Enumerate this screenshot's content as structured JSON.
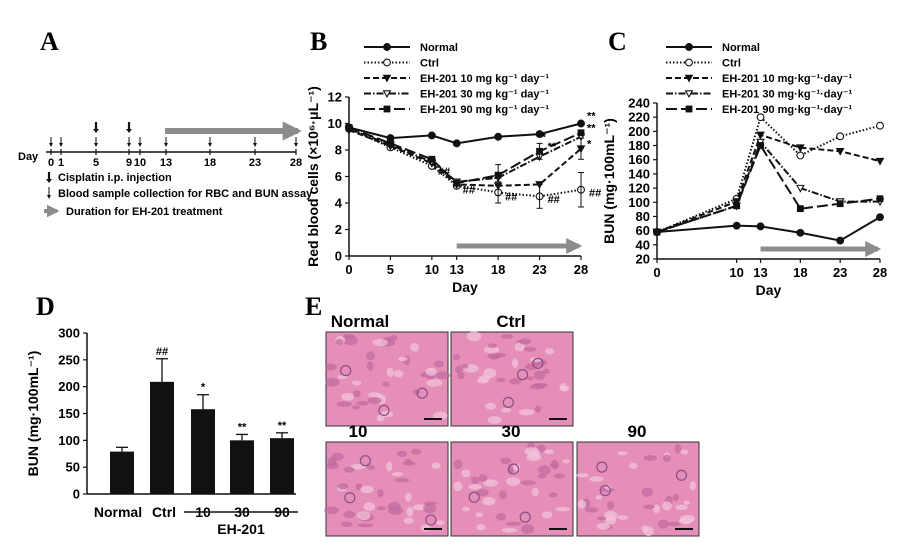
{
  "panels": {
    "A": {
      "label": "A",
      "day_label": "Day",
      "days": [
        "0",
        "1",
        "5",
        "9",
        "10",
        "13",
        "18",
        "23",
        "28"
      ],
      "legend": [
        {
          "icon": "thick-down-arrow-icon",
          "text": "Cisplatin i.p. injection"
        },
        {
          "icon": "thin-down-arrow-icon",
          "text": "Blood sample collection for RBC and BUN assay"
        },
        {
          "icon": "grey-right-arrow-icon",
          "text": "Duration for EH-201 treatment"
        }
      ],
      "treatment_color": "#8c8c8c"
    },
    "B": {
      "label": "B"
    },
    "C": {
      "label": "C"
    },
    "D": {
      "label": "D",
      "group_label": "EH-201"
    },
    "E": {
      "label": "E",
      "images": [
        {
          "label": "Normal"
        },
        {
          "label": "Ctrl"
        },
        {
          "label": "10"
        },
        {
          "label": "30"
        },
        {
          "label": "90"
        }
      ],
      "tissue_color": "#e58fb8"
    }
  },
  "chart_data": [
    {
      "panel": "B",
      "type": "line",
      "xlabel": "Day",
      "ylabel": "Red blood cells (×10⁶·μL⁻¹)",
      "xlim": [
        0,
        28
      ],
      "ylim": [
        0,
        12
      ],
      "xticks": [
        0,
        5,
        10,
        13,
        18,
        23,
        28
      ],
      "yticks": [
        0,
        2,
        4,
        6,
        8,
        10,
        12
      ],
      "x": [
        0,
        5,
        10,
        13,
        18,
        23,
        28
      ],
      "legend_position": "top",
      "series": [
        {
          "name": "Normal",
          "style": "solid",
          "marker": "circle-filled",
          "values": [
            9.7,
            8.9,
            9.1,
            8.5,
            9.0,
            9.2,
            10.0
          ]
        },
        {
          "name": "Ctrl",
          "style": "dotted",
          "marker": "circle-open",
          "values": [
            9.6,
            8.2,
            6.8,
            5.3,
            4.8,
            4.5,
            5.0
          ]
        },
        {
          "name": "EH-201 10 mg kg⁻¹ day⁻¹",
          "style": "dashed",
          "marker": "triangle-filled",
          "values": [
            9.5,
            8.3,
            7.0,
            5.4,
            5.3,
            5.4,
            8.1
          ]
        },
        {
          "name": "EH-201 30 mg kg⁻¹ day⁻¹",
          "style": "dashdot",
          "marker": "triangle-open",
          "values": [
            9.6,
            8.4,
            7.1,
            5.6,
            5.9,
            7.5,
            9.0
          ]
        },
        {
          "name": "EH-201 90 mg kg⁻¹ day⁻¹",
          "style": "longdash",
          "marker": "square-filled",
          "values": [
            9.7,
            8.5,
            7.3,
            5.5,
            6.1,
            7.9,
            9.3
          ]
        }
      ],
      "annotations": [
        "##",
        "##",
        "##",
        "##",
        "##",
        "*",
        "**",
        "**",
        "**",
        "*"
      ],
      "treatment_arrow": {
        "from": 13,
        "to": 28
      }
    },
    {
      "panel": "C",
      "type": "line",
      "xlabel": "Day",
      "ylabel": "BUN (mg·100mL⁻¹)",
      "xlim": [
        0,
        28
      ],
      "ylim": [
        20,
        240
      ],
      "xticks": [
        0,
        10,
        13,
        18,
        23,
        28
      ],
      "yticks": [
        20,
        40,
        60,
        80,
        100,
        120,
        140,
        160,
        180,
        200,
        220,
        240
      ],
      "x": [
        0,
        10,
        13,
        18,
        23,
        28
      ],
      "legend_position": "top",
      "series": [
        {
          "name": "Normal",
          "style": "solid",
          "marker": "circle-filled",
          "values": [
            58,
            67,
            66,
            57,
            46,
            79
          ]
        },
        {
          "name": "Ctrl",
          "style": "dotted",
          "marker": "circle-open",
          "values": [
            58,
            105,
            220,
            166,
            193,
            208
          ]
        },
        {
          "name": "EH-201  10 mg·kg⁻¹·day⁻¹",
          "style": "dashed",
          "marker": "triangle-filled",
          "values": [
            58,
            101,
            195,
            177,
            172,
            158
          ]
        },
        {
          "name": "EH-201  30 mg·kg⁻¹·day⁻¹",
          "style": "dashdot",
          "marker": "triangle-open",
          "values": [
            58,
            95,
            185,
            120,
            101,
            101
          ]
        },
        {
          "name": "EH-201  90 mg·kg⁻¹·day⁻¹",
          "style": "longdash",
          "marker": "square-filled",
          "values": [
            58,
            95,
            180,
            91,
            98,
            105
          ]
        }
      ],
      "treatment_arrow": {
        "from": 13,
        "to": 28
      }
    },
    {
      "panel": "D",
      "type": "bar",
      "ylabel": "BUN (mg·100mL⁻¹)",
      "ylim": [
        0,
        300
      ],
      "yticks": [
        0,
        50,
        100,
        150,
        200,
        250,
        300
      ],
      "categories": [
        "Normal",
        "Ctrl",
        "10",
        "30",
        "90"
      ],
      "values": [
        79,
        209,
        158,
        100,
        104
      ],
      "errors": [
        8,
        43,
        27,
        11,
        10
      ],
      "annotations": [
        "",
        "##",
        "*",
        "**",
        "**"
      ]
    }
  ]
}
